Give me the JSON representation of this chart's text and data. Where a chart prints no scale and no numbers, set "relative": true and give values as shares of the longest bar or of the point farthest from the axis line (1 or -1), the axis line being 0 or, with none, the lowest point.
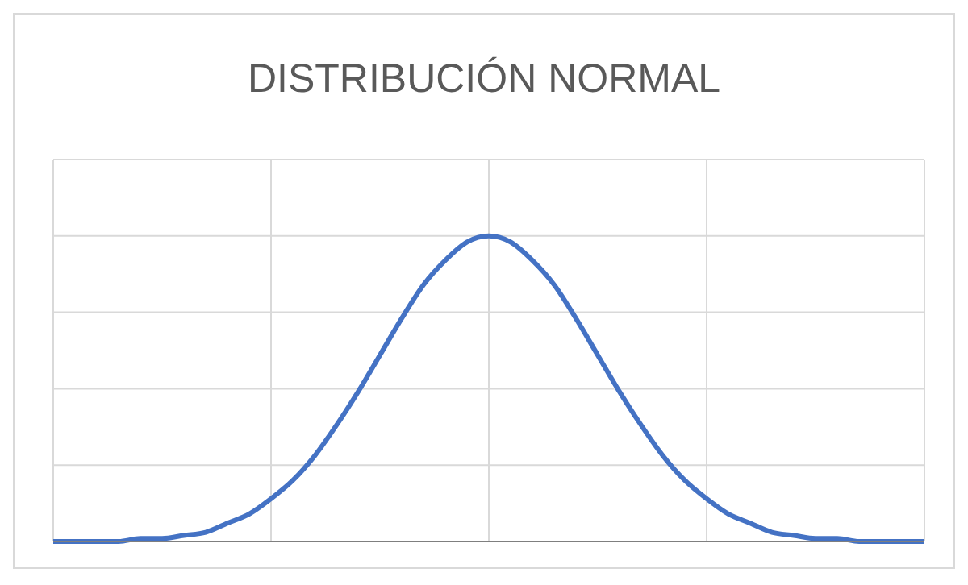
{
  "chart_data": {
    "type": "line",
    "title": "DISTRIBUCIÓN NORMAL",
    "relative": true,
    "grid": true,
    "marker": "none",
    "line_style": "solid",
    "categories": [
      null,
      null,
      null,
      null,
      null,
      null,
      null,
      null,
      null,
      null,
      null,
      null,
      null,
      null,
      null,
      null,
      null,
      null,
      null,
      null,
      null,
      null,
      null,
      null,
      null,
      null,
      null,
      null,
      null,
      null,
      null,
      null,
      null,
      null,
      null,
      null,
      null,
      null,
      null,
      null,
      null
    ],
    "series": [
      {
        "color": "#4472c4",
        "values": [
          0,
          0,
          0,
          0,
          0.01,
          0.01,
          0.02,
          0.03,
          0.06,
          0.09,
          0.14,
          0.2,
          0.28,
          0.38,
          0.49,
          0.61,
          0.73,
          0.84,
          0.92,
          0.98,
          1,
          0.98,
          0.92,
          0.84,
          0.73,
          0.61,
          0.49,
          0.38,
          0.28,
          0.2,
          0.14,
          0.09,
          0.06,
          0.03,
          0.02,
          0.01,
          0.01,
          0,
          0,
          0,
          0
        ]
      }
    ]
  }
}
